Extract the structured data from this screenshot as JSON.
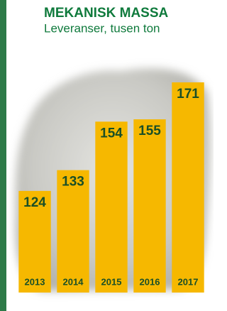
{
  "chart_data": {
    "type": "bar",
    "title": "MEKANISK MASSA",
    "subtitle": "Leveranser, tusen ton",
    "categories": [
      "2013",
      "2014",
      "2015",
      "2016",
      "2017"
    ],
    "values": [
      124,
      133,
      154,
      155,
      171
    ],
    "color": "#f6b800",
    "ylim": [
      80,
      175
    ]
  }
}
